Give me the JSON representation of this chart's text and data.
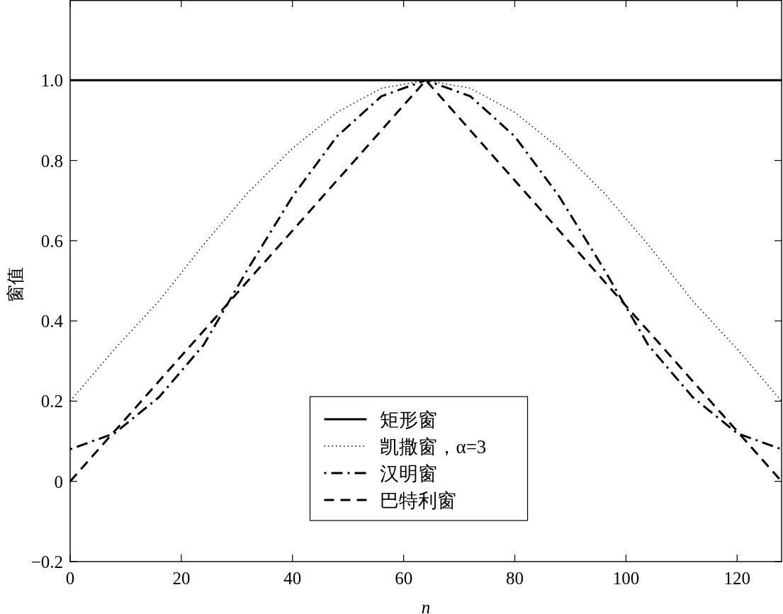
{
  "chart_data": {
    "type": "line",
    "xlabel": "n",
    "ylabel": "窗值",
    "xlim": [
      0,
      128
    ],
    "ylim": [
      -0.2,
      1.2
    ],
    "xticks": [
      0,
      20,
      40,
      60,
      80,
      100,
      120
    ],
    "yticks": [
      {
        "value": -0.2,
        "label": "−0.2"
      },
      0,
      0.2,
      0.4,
      0.6,
      0.8,
      {
        "value": 1,
        "label": "1.0"
      }
    ],
    "grid": false,
    "legend": "bottom",
    "series": [
      {
        "name": "矩形窗",
        "color": "#000000",
        "line_style": "solid",
        "x": [
          0,
          128
        ],
        "values": [
          1,
          1
        ]
      },
      {
        "name": "凯撒窗，α=3",
        "color": "#000000",
        "line_style": "dotted",
        "x": [
          0,
          8,
          16,
          24,
          32,
          40,
          48,
          56,
          64,
          72,
          80,
          88,
          96,
          104,
          112,
          120,
          128
        ],
        "values": [
          0.2,
          0.33,
          0.45,
          0.59,
          0.72,
          0.83,
          0.92,
          0.98,
          1.0,
          0.98,
          0.92,
          0.83,
          0.72,
          0.59,
          0.45,
          0.33,
          0.2
        ]
      },
      {
        "name": "汉明窗",
        "color": "#000000",
        "line_style": "dashdot",
        "x": [
          0,
          8,
          16,
          24,
          32,
          40,
          48,
          56,
          64,
          72,
          80,
          88,
          96,
          104,
          112,
          120,
          128
        ],
        "values": [
          0.08,
          0.12,
          0.21,
          0.34,
          0.53,
          0.71,
          0.86,
          0.96,
          1.0,
          0.96,
          0.86,
          0.71,
          0.53,
          0.34,
          0.21,
          0.12,
          0.08
        ]
      },
      {
        "name": "巴特利窗",
        "color": "#000000",
        "line_style": "dashed",
        "x": [
          0,
          64,
          128
        ],
        "values": [
          0,
          1,
          0
        ]
      }
    ]
  }
}
